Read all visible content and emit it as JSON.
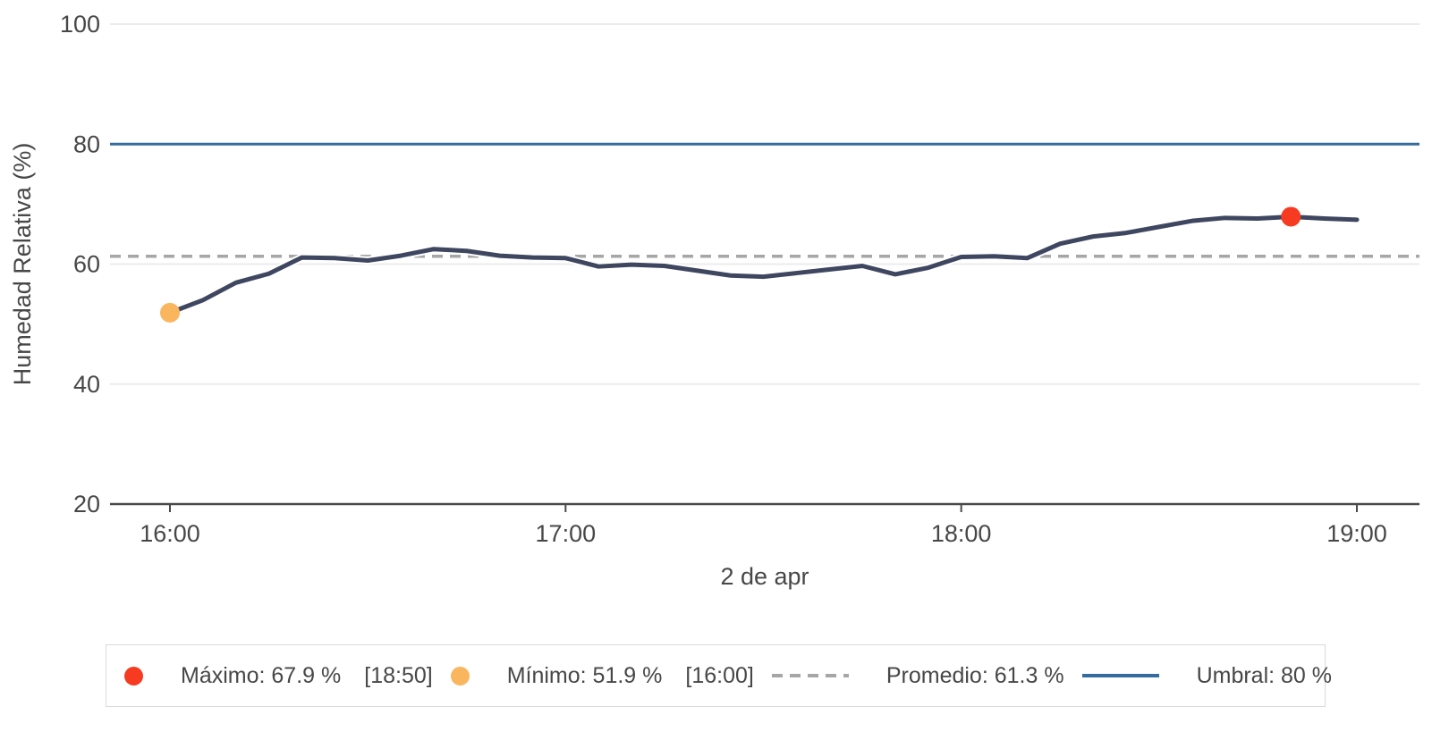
{
  "chart_data": {
    "type": "line",
    "title": "",
    "xlabel": "2 de apr",
    "ylabel": "Humedad Relativa (%)",
    "ylim": [
      20,
      100
    ],
    "yticks": [
      20,
      40,
      60,
      80,
      100
    ],
    "xticks": [
      {
        "index": 0,
        "label": "16:00"
      },
      {
        "index": 12,
        "label": "17:00"
      },
      {
        "index": 24,
        "label": "18:00"
      },
      {
        "index": 36,
        "label": "19:00"
      }
    ],
    "grid": true,
    "legend_position": "bottom",
    "line_color": "#3f4660",
    "axis_color": "#4a4a4a",
    "grid_color": "#ebebeb",
    "x": [
      "16:00",
      "16:05",
      "16:10",
      "16:15",
      "16:20",
      "16:25",
      "16:30",
      "16:35",
      "16:40",
      "16:45",
      "16:50",
      "16:55",
      "17:00",
      "17:05",
      "17:10",
      "17:15",
      "17:20",
      "17:25",
      "17:30",
      "17:35",
      "17:40",
      "17:45",
      "17:50",
      "17:55",
      "18:00",
      "18:05",
      "18:10",
      "18:15",
      "18:20",
      "18:25",
      "18:30",
      "18:35",
      "18:40",
      "18:45",
      "18:50",
      "18:55",
      "19:00"
    ],
    "values": [
      51.9,
      54.0,
      56.9,
      58.4,
      61.1,
      61.0,
      60.6,
      61.4,
      62.5,
      62.2,
      61.4,
      61.1,
      61.0,
      59.6,
      59.9,
      59.7,
      58.9,
      58.1,
      57.9,
      58.5,
      59.1,
      59.7,
      58.3,
      59.4,
      61.2,
      61.3,
      61.0,
      63.4,
      64.6,
      65.2,
      66.2,
      67.2,
      67.7,
      67.6,
      67.9,
      67.6,
      67.4
    ],
    "max": {
      "value": 67.9,
      "time": "18:50",
      "index": 34,
      "color": "#f63b22"
    },
    "min": {
      "value": 51.9,
      "time": "16:00",
      "index": 0,
      "color": "#fab55f"
    },
    "average": {
      "value": 61.3,
      "color": "#a6a6a6",
      "style": "dashed"
    },
    "threshold": {
      "value": 80,
      "color": "#356ca0",
      "style": "solid"
    }
  },
  "legend": {
    "entries": [
      {
        "marker": "dot",
        "color": "#f63b22",
        "label": "Máximo: 67.9 %",
        "time": "[18:50]"
      },
      {
        "marker": "dot",
        "color": "#fab55f",
        "label": "Mínimo: 51.9 %",
        "time": "[16:00]"
      },
      {
        "marker": "dashed-line",
        "color": "#a6a6a6",
        "label": "Promedio: 61.3 %",
        "time": ""
      },
      {
        "marker": "solid-line",
        "color": "#356ca0",
        "label": "Umbral: 80 %",
        "time": ""
      }
    ]
  }
}
